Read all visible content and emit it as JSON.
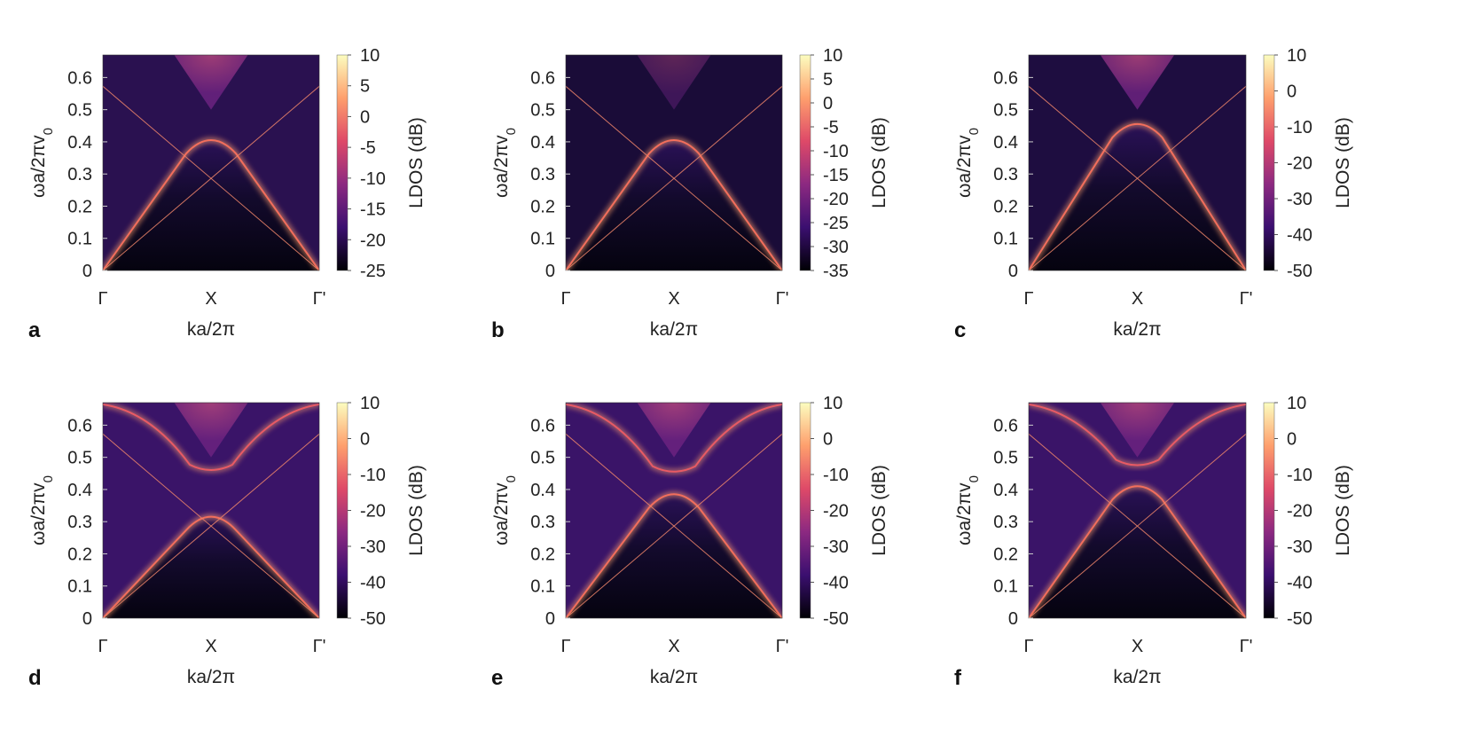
{
  "figure": {
    "x_tick_labels": [
      "Γ",
      "X",
      "Γ'"
    ],
    "x_axis_label": "ka/2π",
    "y_axis_label_main": "ωa/2πv",
    "y_axis_label_sub": "0",
    "colorbar_label": "LDOS (dB)",
    "y_ticks": [
      "0",
      "0.1",
      "0.2",
      "0.3",
      "0.4",
      "0.5",
      "0.6"
    ],
    "colormap": [
      "#000004",
      "#3b0f70",
      "#8c2981",
      "#de4968",
      "#fe9f6d",
      "#fcfdbf"
    ]
  },
  "chart_data": [
    {
      "panel": "a",
      "type": "heatmap",
      "title": "",
      "xlabel": "ka/2π",
      "ylabel": "ωa/2πv0",
      "x_categories": [
        "Γ",
        "X",
        "Γ'"
      ],
      "ylim": [
        0,
        0.67
      ],
      "colorbar": {
        "label": "LDOS (dB)",
        "range": [
          -25,
          10
        ],
        "ticks": [
          10,
          5,
          0,
          -5,
          -10,
          -15,
          -20,
          -25
        ]
      },
      "light_cone_crossing": 0.5,
      "bands": [
        {
          "name": "lower band",
          "apex_at_X": 0.43
        }
      ],
      "background": "bright above light cone"
    },
    {
      "panel": "b",
      "type": "heatmap",
      "title": "",
      "xlabel": "ka/2π",
      "ylabel": "ωa/2πv0",
      "x_categories": [
        "Γ",
        "X",
        "Γ'"
      ],
      "ylim": [
        0,
        0.67
      ],
      "colorbar": {
        "label": "LDOS (dB)",
        "range": [
          -35,
          10
        ],
        "ticks": [
          10,
          5,
          0,
          -5,
          -10,
          -15,
          -20,
          -25,
          -30,
          -35
        ]
      },
      "light_cone_crossing": 0.5,
      "bands": [
        {
          "name": "lower band",
          "apex_at_X": 0.43
        }
      ],
      "background": "dark"
    },
    {
      "panel": "c",
      "type": "heatmap",
      "title": "",
      "xlabel": "ka/2π",
      "ylabel": "ωa/2πv0",
      "x_categories": [
        "Γ",
        "X",
        "Γ'"
      ],
      "ylim": [
        0,
        0.67
      ],
      "colorbar": {
        "label": "LDOS (dB)",
        "range": [
          -50,
          10
        ],
        "ticks": [
          10,
          0,
          -10,
          -20,
          -30,
          -40,
          -50
        ]
      },
      "light_cone_crossing": 0.5,
      "bands": [
        {
          "name": "lower band",
          "apex_at_X": 0.48
        }
      ],
      "background": "bright cone"
    },
    {
      "panel": "d",
      "type": "heatmap",
      "title": "",
      "xlabel": "ka/2π",
      "ylabel": "ωa/2πv0",
      "x_categories": [
        "Γ",
        "X",
        "Γ'"
      ],
      "ylim": [
        0,
        0.67
      ],
      "colorbar": {
        "label": "LDOS (dB)",
        "range": [
          -50,
          10
        ],
        "ticks": [
          10,
          0,
          -10,
          -20,
          -30,
          -40,
          -50
        ]
      },
      "light_cone_crossing": 0.5,
      "bands": [
        {
          "name": "lower band",
          "apex_at_X": 0.34
        },
        {
          "name": "upper band",
          "min_at_X": 0.455,
          "value_at_Gamma": 0.67
        }
      ],
      "background": "medium"
    },
    {
      "panel": "e",
      "type": "heatmap",
      "title": "",
      "xlabel": "ka/2π",
      "ylabel": "ωa/2πv0",
      "x_categories": [
        "Γ",
        "X",
        "Γ'"
      ],
      "ylim": [
        0,
        0.67
      ],
      "colorbar": {
        "label": "LDOS (dB)",
        "range": [
          -50,
          10
        ],
        "ticks": [
          10,
          0,
          -10,
          -20,
          -30,
          -40,
          -50
        ]
      },
      "light_cone_crossing": 0.5,
      "bands": [
        {
          "name": "lower band",
          "apex_at_X": 0.41
        },
        {
          "name": "upper band",
          "min_at_X": 0.45,
          "value_at_Gamma": 0.67
        }
      ],
      "background": "medium"
    },
    {
      "panel": "f",
      "type": "heatmap",
      "title": "",
      "xlabel": "ka/2π",
      "ylabel": "ωa/2πv0",
      "x_categories": [
        "Γ",
        "X",
        "Γ'"
      ],
      "ylim": [
        0,
        0.67
      ],
      "colorbar": {
        "label": "LDOS (dB)",
        "range": [
          -50,
          10
        ],
        "ticks": [
          10,
          0,
          -10,
          -20,
          -30,
          -40,
          -50
        ]
      },
      "light_cone_crossing": 0.5,
      "bands": [
        {
          "name": "lower band",
          "apex_at_X": 0.435
        },
        {
          "name": "upper band",
          "min_at_X": 0.47,
          "value_at_Gamma": 0.67
        }
      ],
      "background": "medium"
    }
  ]
}
